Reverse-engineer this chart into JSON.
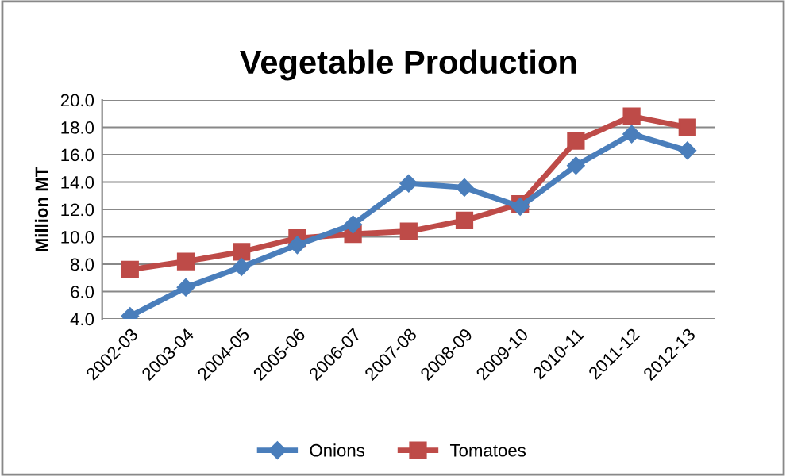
{
  "chart_data": {
    "type": "line",
    "title": "Vegetable Production",
    "ylabel": "Million MT",
    "categories": [
      "2002-03",
      "2003-04",
      "2004-05",
      "2005-06",
      "2006-07",
      "2007-08",
      "2008-09",
      "2009-10",
      "2010-11",
      "2011-12",
      "2012-13"
    ],
    "series": [
      {
        "name": "Onions",
        "color": "#4a7ebb",
        "marker": "diamond",
        "values": [
          4.2,
          6.3,
          7.8,
          9.4,
          10.9,
          13.9,
          13.6,
          12.2,
          15.2,
          17.5,
          16.3
        ]
      },
      {
        "name": "Tomatoes",
        "color": "#be4b48",
        "marker": "square",
        "values": [
          7.6,
          8.2,
          8.9,
          9.9,
          10.2,
          10.4,
          11.2,
          12.4,
          17.0,
          18.8,
          18.0
        ]
      }
    ],
    "ylim": [
      4,
      20
    ],
    "yticks": [
      {
        "value": 4,
        "label": "4.0"
      },
      {
        "value": 6,
        "label": "6.0"
      },
      {
        "value": 8,
        "label": "8.0"
      },
      {
        "value": 10,
        "label": "10.0"
      },
      {
        "value": 12,
        "label": "12.0"
      },
      {
        "value": 14,
        "label": "14.0"
      },
      {
        "value": 16,
        "label": "16.0"
      },
      {
        "value": 18,
        "label": "18.0"
      },
      {
        "value": 20,
        "label": "20.0"
      }
    ],
    "grid": "y",
    "legend": "bottom",
    "line_style": "solid"
  }
}
